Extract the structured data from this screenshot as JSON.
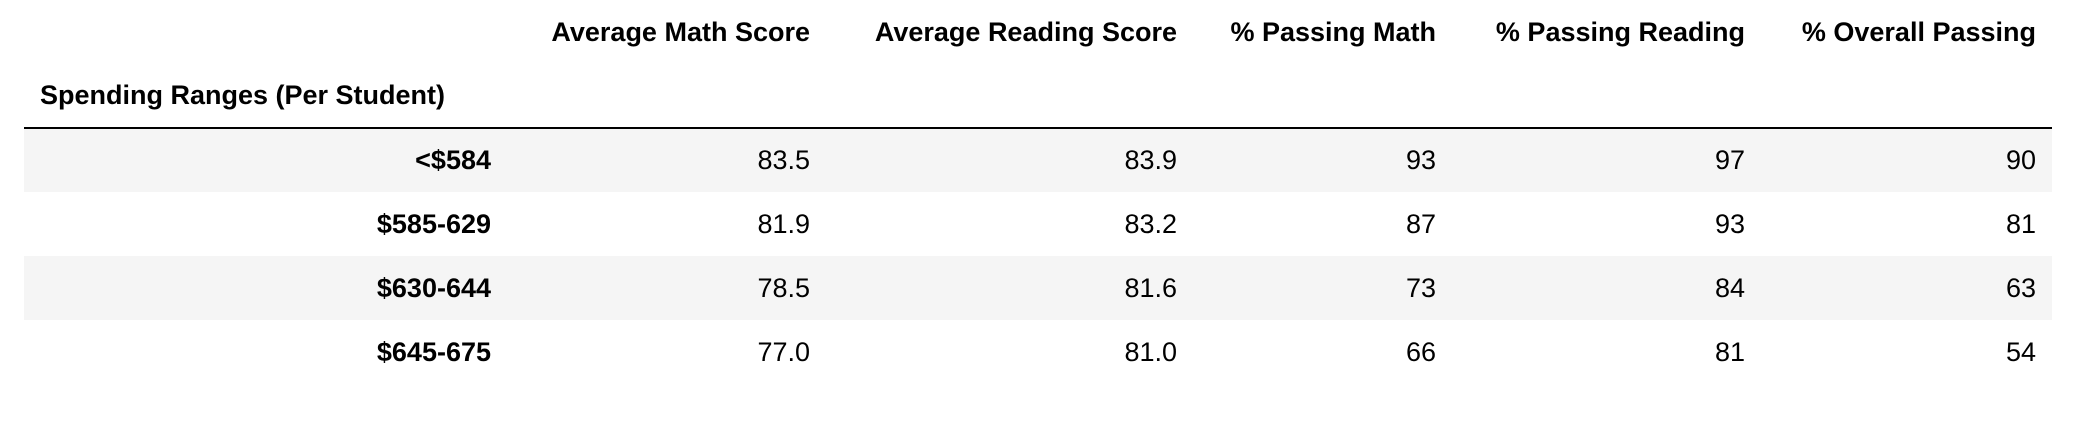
{
  "table": {
    "index_name": "Spending Ranges (Per Student)",
    "columns": [
      "Average Math Score",
      "Average Reading Score",
      "% Passing Math",
      "% Passing Reading",
      "% Overall Passing"
    ],
    "rows": [
      {
        "label": "<$584",
        "values": [
          "83.5",
          "83.9",
          "93",
          "97",
          "90"
        ]
      },
      {
        "label": "$585-629",
        "values": [
          "81.9",
          "83.2",
          "87",
          "93",
          "81"
        ]
      },
      {
        "label": "$630-644",
        "values": [
          "78.5",
          "81.6",
          "73",
          "84",
          "63"
        ]
      },
      {
        "label": "$645-675",
        "values": [
          "77.0",
          "81.0",
          "66",
          "81",
          "54"
        ]
      }
    ]
  }
}
